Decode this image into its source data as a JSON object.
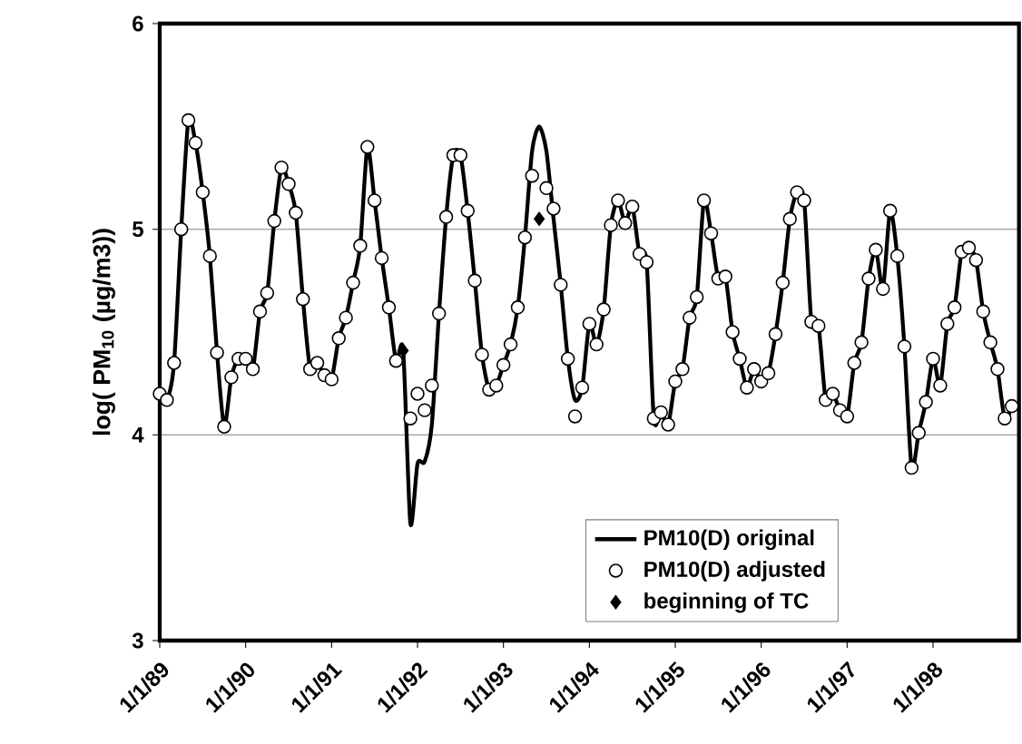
{
  "chart_data": {
    "type": "line",
    "ylabel": "log( PM$_{10}$ (µg/m3))",
    "x": [
      "1989-01",
      "1989-02",
      "1989-03",
      "1989-04",
      "1989-05",
      "1989-06",
      "1989-07",
      "1989-08",
      "1989-09",
      "1989-10",
      "1989-11",
      "1989-12",
      "1990-01",
      "1990-02",
      "1990-03",
      "1990-04",
      "1990-05",
      "1990-06",
      "1990-07",
      "1990-08",
      "1990-09",
      "1990-10",
      "1990-11",
      "1990-12",
      "1991-01",
      "1991-02",
      "1991-03",
      "1991-04",
      "1991-05",
      "1991-06",
      "1991-07",
      "1991-08",
      "1991-09",
      "1991-10",
      "1991-11",
      "1991-12",
      "1992-01",
      "1992-02",
      "1992-03",
      "1992-04",
      "1992-05",
      "1992-06",
      "1992-07",
      "1992-08",
      "1992-09",
      "1992-10",
      "1992-11",
      "1992-12",
      "1993-01",
      "1993-02",
      "1993-03",
      "1993-04",
      "1993-05",
      "1993-06",
      "1993-07",
      "1993-08",
      "1993-09",
      "1993-10",
      "1993-11",
      "1993-12",
      "1994-01",
      "1994-02",
      "1994-03",
      "1994-04",
      "1994-05",
      "1994-06",
      "1994-07",
      "1994-08",
      "1994-09",
      "1994-10",
      "1994-11",
      "1994-12",
      "1995-01",
      "1995-02",
      "1995-03",
      "1995-04",
      "1995-05",
      "1995-06",
      "1995-07",
      "1995-08",
      "1995-09",
      "1995-10",
      "1995-11",
      "1995-12",
      "1996-01",
      "1996-02",
      "1996-03",
      "1996-04",
      "1996-05",
      "1996-06",
      "1996-07",
      "1996-08",
      "1996-09",
      "1996-10",
      "1996-11",
      "1996-12",
      "1997-01",
      "1997-02",
      "1997-03",
      "1997-04",
      "1997-05",
      "1997-06",
      "1997-07",
      "1997-08",
      "1997-09",
      "1997-10",
      "1997-11",
      "1997-12",
      "1998-01",
      "1998-02",
      "1998-03",
      "1998-04",
      "1998-05",
      "1998-06",
      "1998-07",
      "1998-08",
      "1998-09",
      "1998-10",
      "1998-11",
      "1998-12"
    ],
    "series": [
      {
        "name": "PM10(D) original",
        "color": "#000000",
        "marker": "none",
        "line_style": "solid",
        "values": [
          4.2,
          4.17,
          4.35,
          5.0,
          5.53,
          5.42,
          5.18,
          4.87,
          4.4,
          4.04,
          4.28,
          4.37,
          4.37,
          4.32,
          4.6,
          4.69,
          5.04,
          5.3,
          5.22,
          5.08,
          4.66,
          4.32,
          4.35,
          4.29,
          4.27,
          4.47,
          4.57,
          4.74,
          4.92,
          5.4,
          5.14,
          4.86,
          4.62,
          4.36,
          4.41,
          3.57,
          3.86,
          3.87,
          4.05,
          4.59,
          5.06,
          5.36,
          5.36,
          5.09,
          4.75,
          4.39,
          4.22,
          4.24,
          4.34,
          4.44,
          4.62,
          4.96,
          5.38,
          5.5,
          5.38,
          5.05,
          4.73,
          4.37,
          4.17,
          4.23,
          4.54,
          4.44,
          4.61,
          5.02,
          5.14,
          5.03,
          5.11,
          4.88,
          4.84,
          4.08,
          4.11,
          4.05,
          4.26,
          4.32,
          4.57,
          4.67,
          5.14,
          4.98,
          4.76,
          4.77,
          4.5,
          4.37,
          4.23,
          4.32,
          4.26,
          4.3,
          4.49,
          4.74,
          5.05,
          5.18,
          5.14,
          4.55,
          4.53,
          4.17,
          4.2,
          4.12,
          4.09,
          4.35,
          4.45,
          4.76,
          4.9,
          4.71,
          5.09,
          4.87,
          4.43,
          3.84,
          4.01,
          4.16,
          4.37,
          4.24,
          4.54,
          4.62,
          4.89,
          4.91,
          4.85,
          4.6,
          4.45,
          4.32,
          4.08,
          4.14
        ]
      },
      {
        "name": "PM10(D) adjusted",
        "type": "scatter",
        "color": "#ffffff",
        "marker": "circle",
        "values": [
          4.2,
          4.17,
          4.35,
          5.0,
          5.53,
          5.42,
          5.18,
          4.87,
          4.4,
          4.04,
          4.28,
          4.37,
          4.37,
          4.32,
          4.6,
          4.69,
          5.04,
          5.3,
          5.22,
          5.08,
          4.66,
          4.32,
          4.35,
          4.29,
          4.27,
          4.47,
          4.57,
          4.74,
          4.92,
          5.4,
          5.14,
          4.86,
          4.62,
          4.36,
          null,
          4.08,
          4.2,
          4.12,
          4.24,
          4.59,
          5.06,
          5.36,
          5.36,
          5.09,
          4.75,
          4.39,
          4.22,
          4.24,
          4.34,
          4.44,
          4.62,
          4.96,
          5.26,
          null,
          5.2,
          5.1,
          4.73,
          4.37,
          4.09,
          4.23,
          4.54,
          4.44,
          4.61,
          5.02,
          5.14,
          5.03,
          5.11,
          4.88,
          4.84,
          4.08,
          4.11,
          4.05,
          4.26,
          4.32,
          4.57,
          4.67,
          5.14,
          4.98,
          4.76,
          4.77,
          4.5,
          4.37,
          4.23,
          4.32,
          4.26,
          4.3,
          4.49,
          4.74,
          5.05,
          5.18,
          5.14,
          4.55,
          4.53,
          4.17,
          4.2,
          4.12,
          4.09,
          4.35,
          4.45,
          4.76,
          4.9,
          4.71,
          5.09,
          4.87,
          4.43,
          3.84,
          4.01,
          4.16,
          4.37,
          4.24,
          4.54,
          4.62,
          4.89,
          4.91,
          4.85,
          4.6,
          4.45,
          4.32,
          4.08,
          4.14
        ]
      },
      {
        "name": "beginning of TC",
        "type": "scatter",
        "color": "#000000",
        "marker": "diamond",
        "x": [
          "1991-11",
          "1993-06"
        ],
        "values": [
          4.41,
          5.05
        ]
      }
    ],
    "xlim": [
      "1989-01-01",
      "1999-01-01"
    ],
    "xticks": [
      {
        "value": "1989-01-01",
        "label": "1/1/89"
      },
      {
        "value": "1990-01-01",
        "label": "1/1/90"
      },
      {
        "value": "1991-01-01",
        "label": "1/1/91"
      },
      {
        "value": "1992-01-01",
        "label": "1/1/92"
      },
      {
        "value": "1993-01-01",
        "label": "1/1/93"
      },
      {
        "value": "1994-01-01",
        "label": "1/1/94"
      },
      {
        "value": "1995-01-01",
        "label": "1/1/95"
      },
      {
        "value": "1996-01-01",
        "label": "1/1/96"
      },
      {
        "value": "1997-01-01",
        "label": "1/1/97"
      },
      {
        "value": "1998-01-01",
        "label": "1/1/98"
      }
    ],
    "ylim": [
      3,
      6
    ],
    "yticks": [
      3,
      4,
      5,
      6
    ],
    "grid": "y",
    "legend": "bottom right"
  }
}
